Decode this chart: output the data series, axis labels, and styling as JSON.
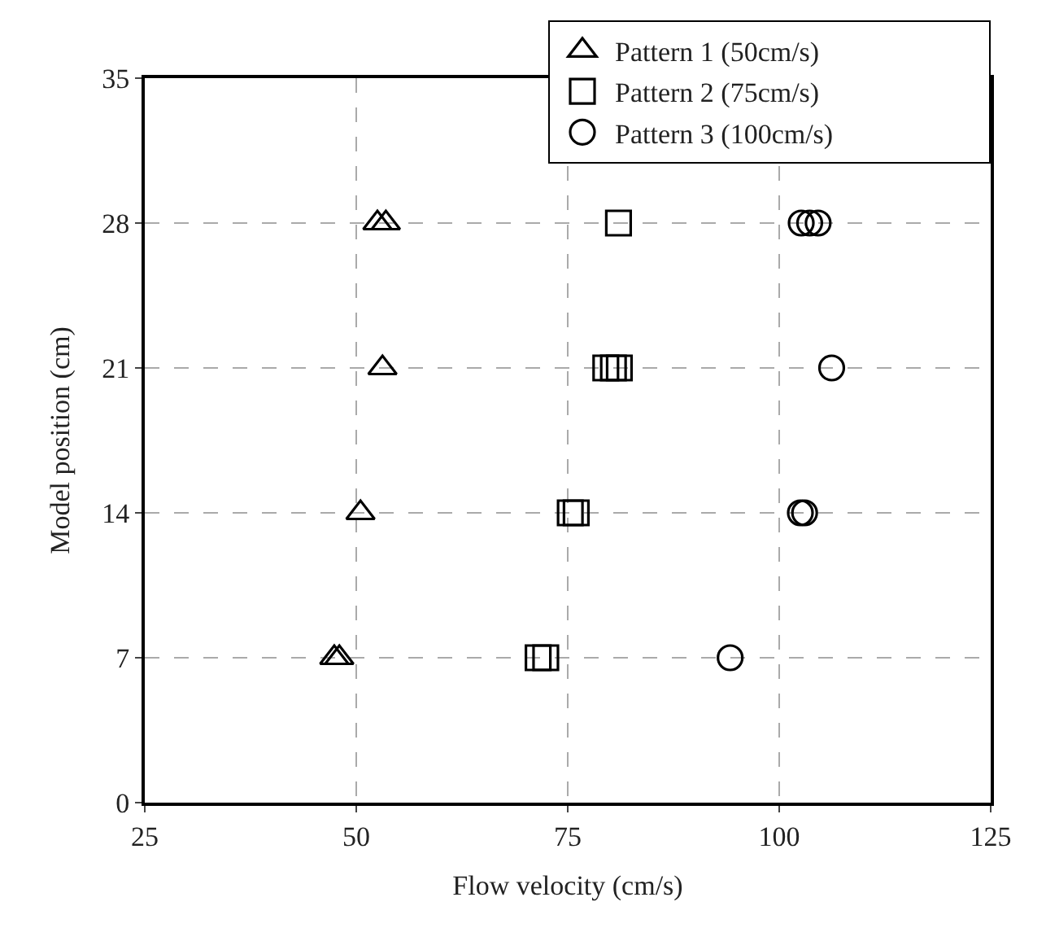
{
  "chart_data": {
    "type": "scatter",
    "xlabel": "Flow velocity (cm/s)",
    "ylabel": "Model position (cm)",
    "xlim": [
      25,
      125
    ],
    "xticks": [
      25,
      50,
      75,
      100,
      125
    ],
    "ylim": [
      0,
      35
    ],
    "yticks": [
      0,
      7,
      14,
      21,
      28,
      35
    ],
    "grid": true,
    "legend": "top right",
    "series": [
      {
        "name": "Pattern 1 (50cm/s)",
        "color": "#000000",
        "marker": "triangle",
        "x": [
          52.5,
          53.5,
          53.1,
          50.5,
          47.4,
          48.0
        ],
        "values": [
          28,
          28,
          21,
          14,
          7,
          7
        ]
      },
      {
        "name": "Pattern 2 (75cm/s)",
        "color": "#000000",
        "marker": "square",
        "x": [
          81.0,
          79.5,
          80.4,
          81.1,
          75.3,
          76.0,
          71.5,
          72.4
        ],
        "values": [
          28,
          21,
          21,
          21,
          14,
          14,
          7,
          7
        ]
      },
      {
        "name": "Pattern 3 (100cm/s)",
        "color": "#000000",
        "marker": "circle",
        "x": [
          102.6,
          103.6,
          104.6,
          106.2,
          102.5,
          103.0,
          94.2
        ],
        "values": [
          28,
          28,
          28,
          21,
          14,
          14,
          7
        ]
      }
    ]
  }
}
